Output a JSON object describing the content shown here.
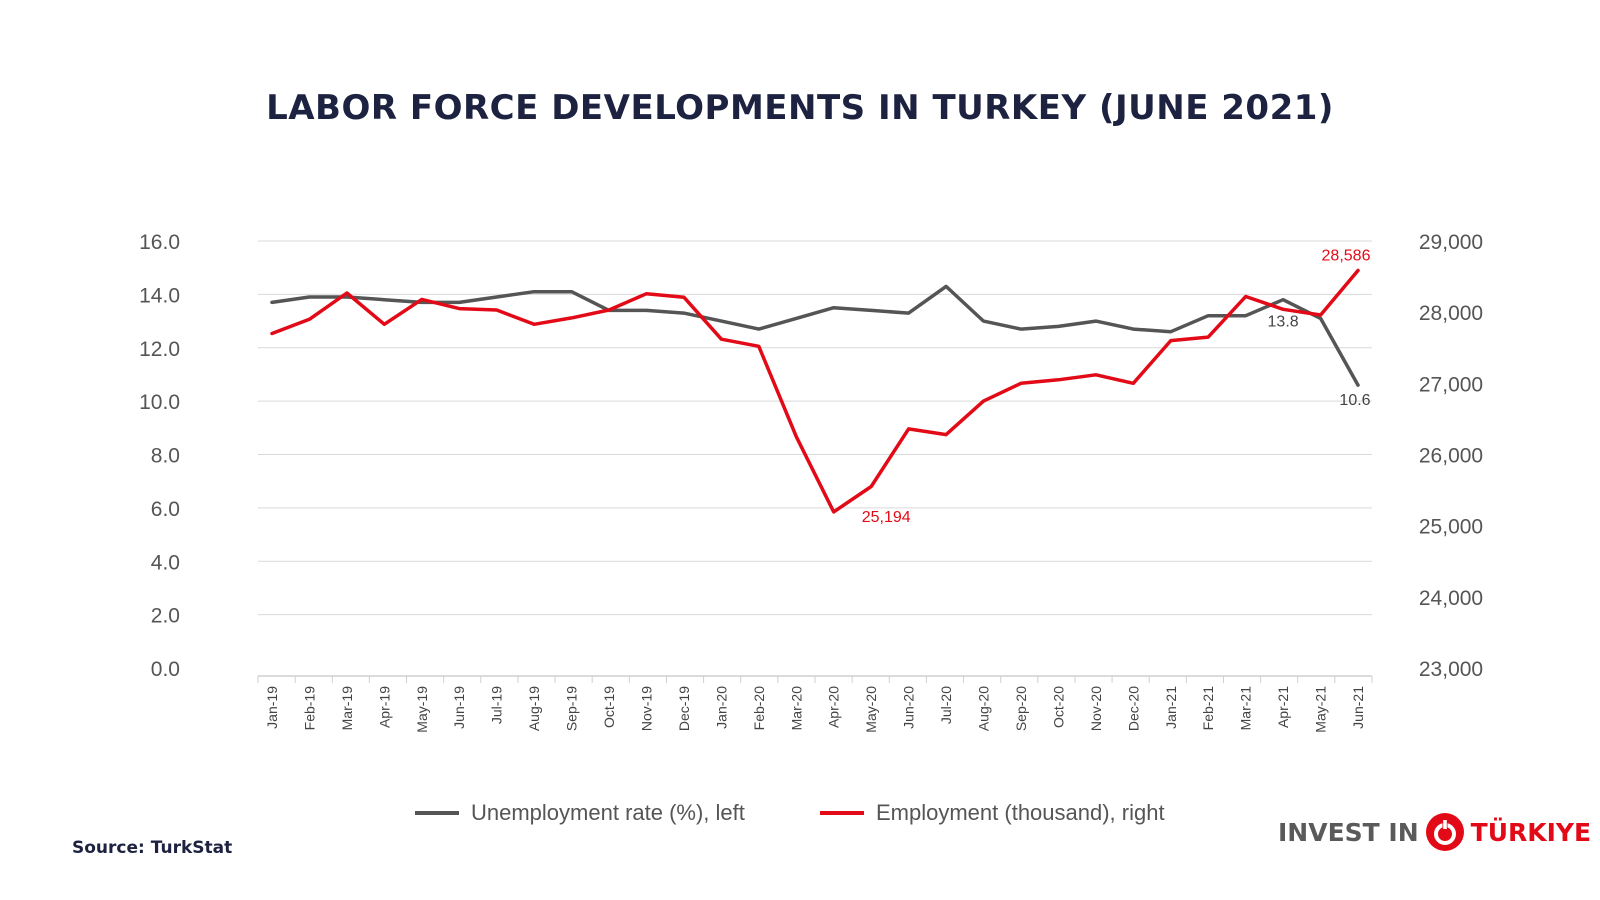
{
  "title": "LABOR FORCE DEVELOPMENTS IN TURKEY (JUNE 2021)",
  "source": "Source: TurkStat",
  "brand": {
    "prefix": "INVEST IN",
    "country": "TÜRKIYE",
    "logo_icon": "red-circle-power-icon"
  },
  "legend": [
    {
      "label": "Unemployment rate (%), left",
      "color": "#555555"
    },
    {
      "label": "Employment (thousand), right",
      "color": "#e30a17"
    }
  ],
  "chart_data": {
    "type": "line",
    "categories": [
      "Jan-19",
      "Feb-19",
      "Mar-19",
      "Apr-19",
      "May-19",
      "Jun-19",
      "Jul-19",
      "Aug-19",
      "Sep-19",
      "Oct-19",
      "Nov-19",
      "Dec-19",
      "Jan-20",
      "Feb-20",
      "Mar-20",
      "Apr-20",
      "May-20",
      "Jun-20",
      "Jul-20",
      "Aug-20",
      "Sep-20",
      "Oct-20",
      "Nov-20",
      "Dec-20",
      "Jan-21",
      "Feb-21",
      "Mar-21",
      "Apr-21",
      "May-21",
      "Jun-21"
    ],
    "left_axis": {
      "ylim": [
        0,
        16
      ],
      "ticks": [
        "0.0",
        "2.0",
        "4.0",
        "6.0",
        "8.0",
        "10.0",
        "12.0",
        "14.0",
        "16.0"
      ]
    },
    "right_axis": {
      "ylim": [
        23000,
        29000
      ],
      "ticks": [
        "23,000",
        "24,000",
        "25,000",
        "26,000",
        "27,000",
        "28,000",
        "29,000"
      ]
    },
    "series": [
      {
        "name": "Unemployment rate (%), left",
        "axis": "left",
        "color": "#555555",
        "values": [
          13.7,
          13.9,
          13.9,
          13.8,
          13.7,
          13.7,
          13.9,
          14.1,
          14.1,
          13.4,
          13.4,
          13.3,
          13.0,
          12.7,
          13.1,
          13.5,
          13.4,
          13.3,
          14.3,
          13.0,
          12.7,
          12.8,
          13.0,
          12.7,
          12.6,
          13.2,
          13.2,
          13.8,
          13.1,
          10.6
        ]
      },
      {
        "name": "Employment (thousand), right",
        "axis": "right",
        "color": "#e30a17",
        "values": [
          27700,
          27900,
          28270,
          27830,
          28180,
          28050,
          28030,
          27830,
          27920,
          28030,
          28260,
          28210,
          27620,
          27520,
          26250,
          25194,
          25550,
          26360,
          26280,
          26750,
          27000,
          27050,
          27120,
          27000,
          27600,
          27650,
          28220,
          28040,
          27960,
          28586
        ]
      }
    ],
    "annotations": [
      {
        "text": "28,586",
        "series": 1,
        "index": 29
      },
      {
        "text": "25,194",
        "series": 1,
        "index": 15
      },
      {
        "text": "13.8",
        "series": 0,
        "index": 27
      },
      {
        "text": "10.6",
        "series": 0,
        "index": 29
      }
    ],
    "grid": true,
    "legend_position": "bottom"
  }
}
